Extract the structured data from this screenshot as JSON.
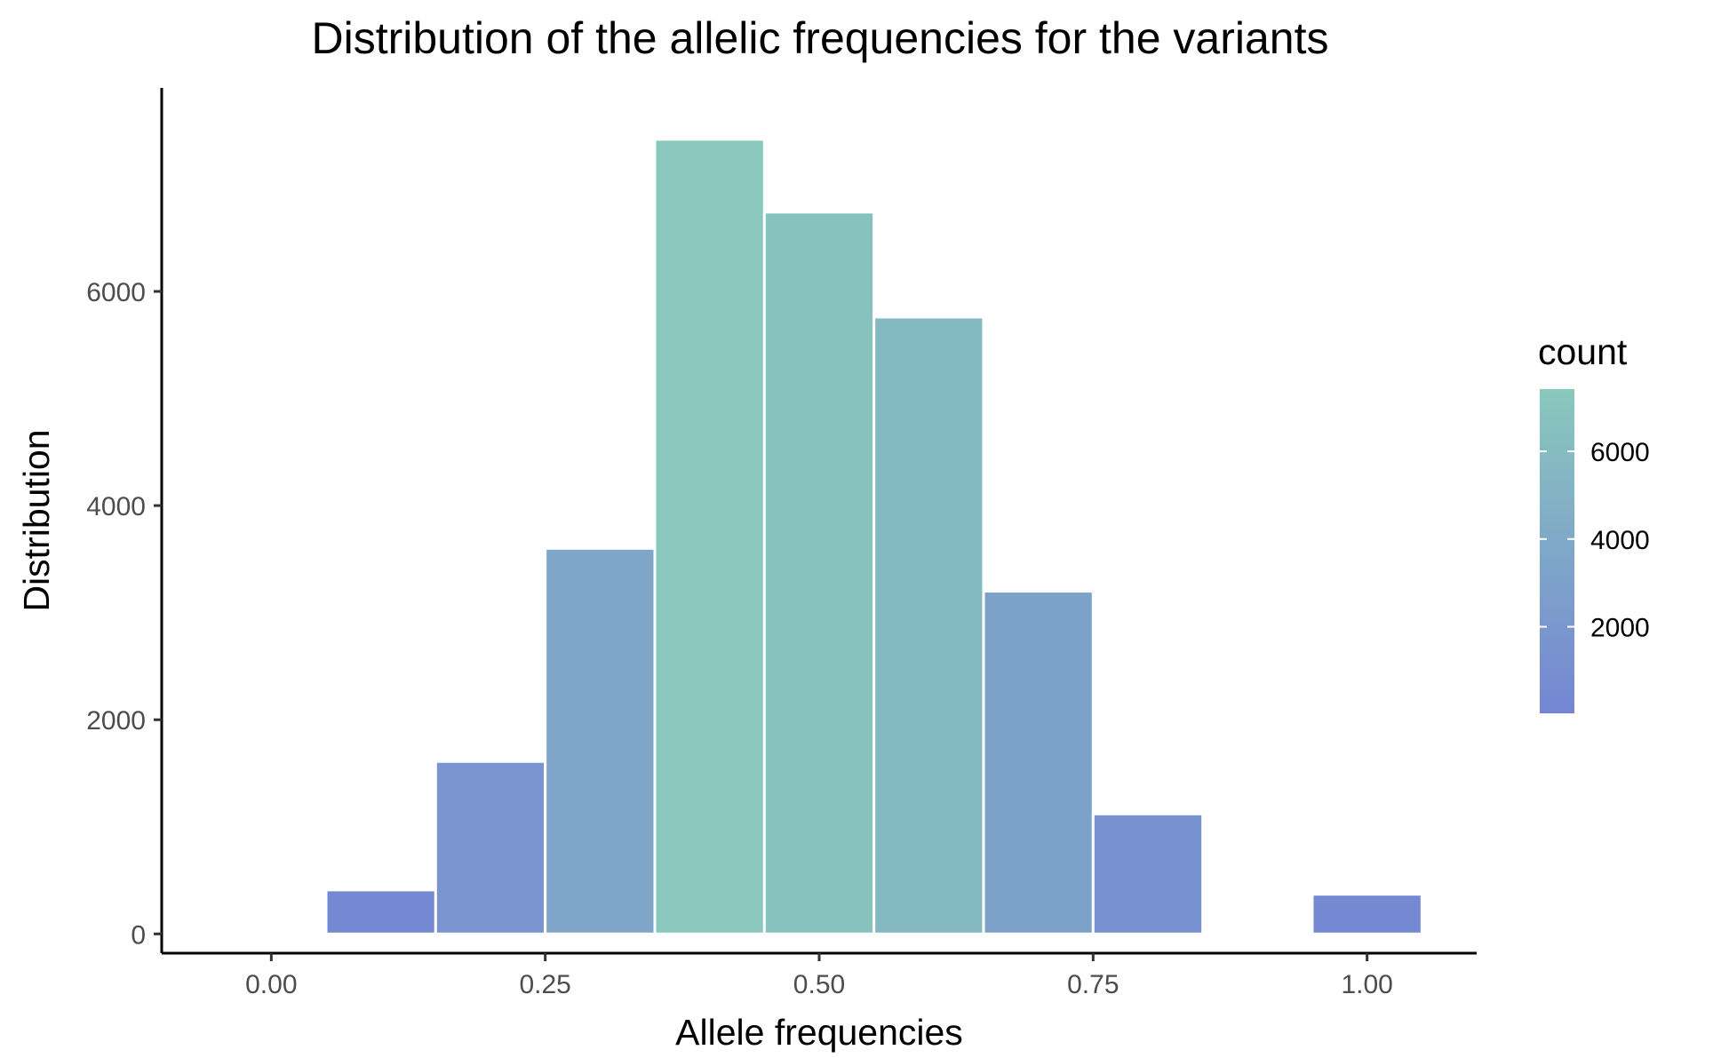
{
  "chart_data": {
    "type": "bar",
    "title": "Distribution of the allelic frequencies for the variants",
    "xlabel": "Allele frequencies",
    "ylabel": "Distribution",
    "bins": [
      {
        "center": 0.0,
        "count": 25
      },
      {
        "center": 0.1,
        "count": 410
      },
      {
        "center": 0.2,
        "count": 1610
      },
      {
        "center": 0.3,
        "count": 3600
      },
      {
        "center": 0.4,
        "count": 7420
      },
      {
        "center": 0.5,
        "count": 6740
      },
      {
        "center": 0.6,
        "count": 5760
      },
      {
        "center": 0.7,
        "count": 3200
      },
      {
        "center": 0.8,
        "count": 1120
      },
      {
        "center": 1.0,
        "count": 370
      }
    ],
    "bin_width": 0.1,
    "xlim": [
      -0.1,
      1.1
    ],
    "ylim": [
      -180,
      7900
    ],
    "x_ticks": [
      "0.00",
      "0.25",
      "0.50",
      "0.75",
      "1.00"
    ],
    "x_tick_values": [
      0,
      0.25,
      0.5,
      0.75,
      1.0
    ],
    "y_ticks": [
      "0",
      "2000",
      "4000",
      "6000"
    ],
    "y_tick_values": [
      0,
      2000,
      4000,
      6000
    ],
    "grid": false,
    "legend": {
      "title": "count",
      "placement": "right",
      "type": "colorbar",
      "range": [
        25,
        7420
      ],
      "ticks": [
        "2000",
        "4000",
        "6000"
      ],
      "tick_values": [
        2000,
        4000,
        6000
      ],
      "low_color": "#7486d3",
      "high_color": "#8ac8bd"
    }
  }
}
